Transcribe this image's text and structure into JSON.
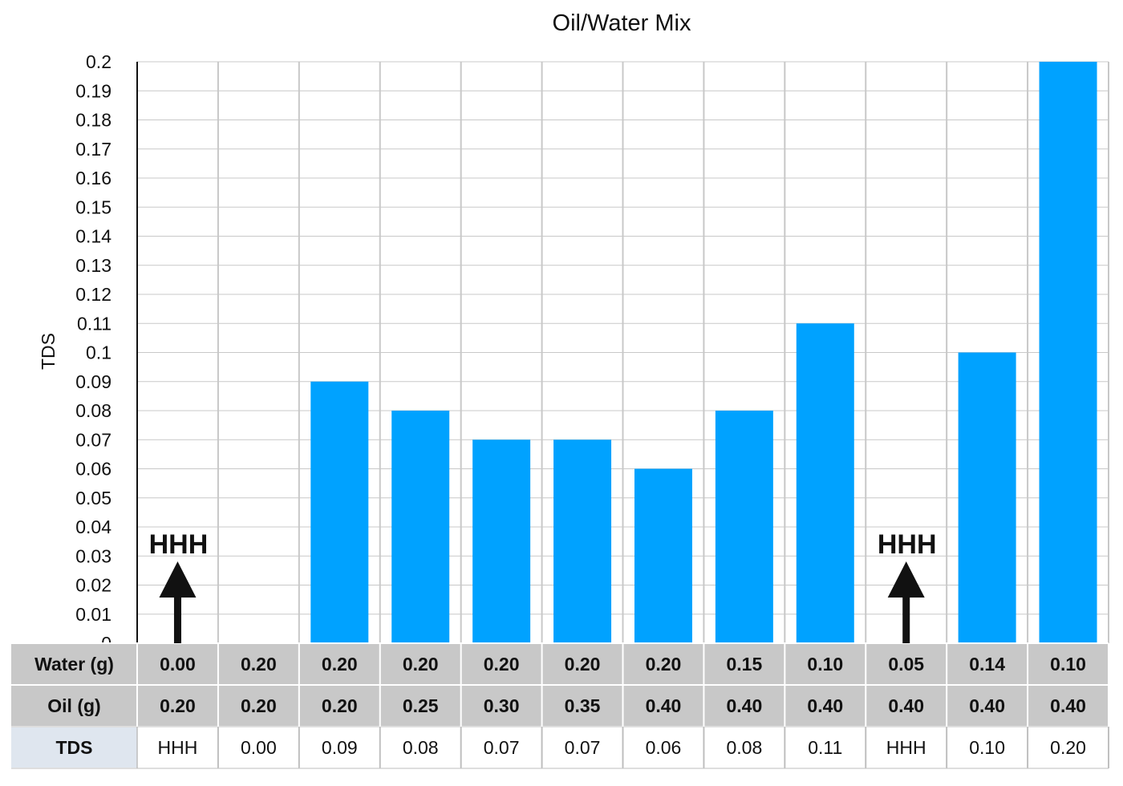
{
  "chart_data": {
    "type": "bar",
    "title": "Oil/Water Mix",
    "ylabel": "TDS",
    "xlabel": "",
    "ylim": [
      0,
      0.2
    ],
    "yticks": [
      "0",
      "0.01",
      "0.02",
      "0.03",
      "0.04",
      "0.05",
      "0.06",
      "0.07",
      "0.08",
      "0.09",
      "0.1",
      "0.11",
      "0.12",
      "0.13",
      "0.14",
      "0.15",
      "0.16",
      "0.17",
      "0.18",
      "0.19",
      "0.2"
    ],
    "grid": true,
    "values": [
      null,
      0.0,
      0.09,
      0.08,
      0.07,
      0.07,
      0.06,
      0.08,
      0.11,
      null,
      0.1,
      0.2
    ],
    "bar_color": "#00a2ff",
    "annotations": [
      {
        "index": 0,
        "text": "HHH",
        "icon": "up-arrow-icon"
      },
      {
        "index": 9,
        "text": "HHH",
        "icon": "up-arrow-icon"
      }
    ],
    "table": {
      "rows": [
        {
          "label": "Water (g)",
          "values": [
            "0.00",
            "0.20",
            "0.20",
            "0.20",
            "0.20",
            "0.20",
            "0.20",
            "0.15",
            "0.10",
            "0.05",
            "0.14",
            "0.10"
          ]
        },
        {
          "label": "Oil (g)",
          "values": [
            "0.20",
            "0.20",
            "0.20",
            "0.25",
            "0.30",
            "0.35",
            "0.40",
            "0.40",
            "0.40",
            "0.40",
            "0.40",
            "0.40"
          ]
        },
        {
          "label": "TDS",
          "values": [
            "HHH",
            "0.00",
            "0.09",
            "0.08",
            "0.07",
            "0.07",
            "0.06",
            "0.08",
            "0.11",
            "HHH",
            "0.10",
            "0.20"
          ]
        }
      ],
      "header_color": "#c8c8c8",
      "label_cell_color": "#dfe6ef"
    }
  }
}
